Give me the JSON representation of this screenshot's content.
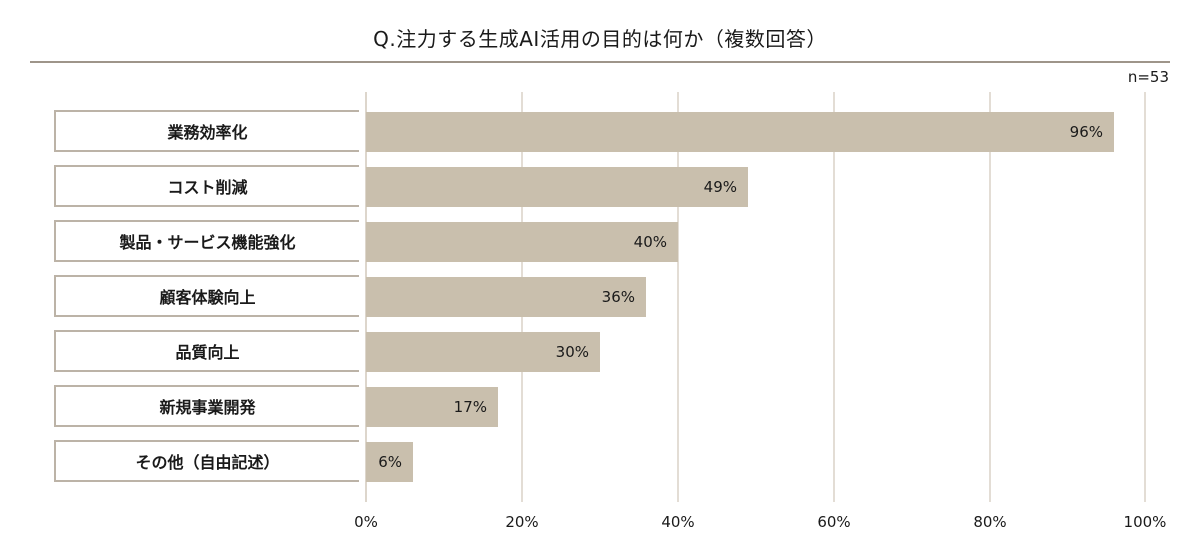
{
  "chart_data": {
    "type": "bar",
    "orientation": "horizontal",
    "title": "Q.注力する生成AI活用の目的は何か（複数回答）",
    "sample_size": "n=53",
    "categories": [
      "業務効率化",
      "コスト削減",
      "製品・サービス機能強化",
      "顧客体験向上",
      "品質向上",
      "新規事業開発",
      "その他（自由記述）"
    ],
    "values": [
      96,
      49,
      40,
      36,
      30,
      17,
      6
    ],
    "value_labels": [
      "96%",
      "49%",
      "40%",
      "36%",
      "30%",
      "17%",
      "6%"
    ],
    "xlabel": "",
    "ylabel": "",
    "xlim": [
      0,
      100
    ],
    "x_ticks": [
      "0%",
      "20%",
      "40%",
      "60%",
      "80%",
      "100%"
    ],
    "grid": true,
    "legend": "none",
    "colors": {
      "bar": "#c9bfad",
      "gridline": "#e3ddd5",
      "title_rule": "#9e958a",
      "label_border": "#bcb3a7"
    }
  },
  "header": {
    "title": "Q.注力する生成AI活用の目的は何か（複数回答）",
    "n_label": "n=53"
  },
  "axis": {
    "ticks": [
      {
        "label": "0%",
        "value": 0
      },
      {
        "label": "20%",
        "value": 20
      },
      {
        "label": "40%",
        "value": 40
      },
      {
        "label": "60%",
        "value": 60
      },
      {
        "label": "80%",
        "value": 80
      },
      {
        "label": "100%",
        "value": 100
      }
    ]
  },
  "rows": [
    {
      "label": "業務効率化",
      "value": 96,
      "value_label": "96%"
    },
    {
      "label": "コスト削減",
      "value": 49,
      "value_label": "49%"
    },
    {
      "label": "製品・サービス機能強化",
      "value": 40,
      "value_label": "40%"
    },
    {
      "label": "顧客体験向上",
      "value": 36,
      "value_label": "36%"
    },
    {
      "label": "品質向上",
      "value": 30,
      "value_label": "30%"
    },
    {
      "label": "新規事業開発",
      "value": 17,
      "value_label": "17%"
    },
    {
      "label": "その他（自由記述）",
      "value": 6,
      "value_label": "6%"
    }
  ]
}
